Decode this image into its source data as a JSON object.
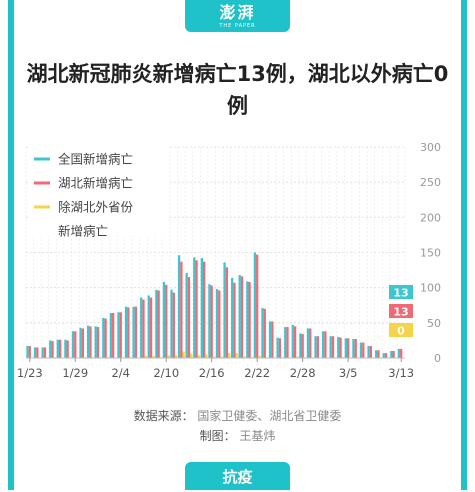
{
  "header": {
    "logo_text": "澎湃",
    "logo_sub": "THE PAPER"
  },
  "title": "湖北新冠肺炎新增病亡13例，湖北以外病亡0例",
  "source": {
    "data_label": "数据来源：",
    "data_value": "国家卫健委、湖北省卫健委",
    "chart_label": "制图：",
    "chart_value": "王基炜"
  },
  "footer": {
    "tab_label": "抗疫"
  },
  "colors": {
    "accent": "#1fc2c9",
    "national": "#3ec6d0",
    "hubei": "#f06a74",
    "outside": "#f5d44a"
  },
  "chart_data": {
    "type": "bar",
    "series": [
      {
        "name": "全国新增病亡",
        "values": [
          17,
          15,
          15,
          25,
          26,
          26,
          38,
          43,
          46,
          45,
          57,
          64,
          65,
          73,
          73,
          86,
          89,
          97,
          108,
          97,
          146,
          121,
          143,
          142,
          105,
          98,
          136,
          114,
          118,
          109,
          150,
          71,
          52,
          29,
          44,
          47,
          35,
          42,
          31,
          38,
          31,
          30,
          28,
          27,
          22,
          17,
          11,
          7,
          10,
          13
        ]
      },
      {
        "name": "湖北新增病亡",
        "values": [
          17,
          15,
          15,
          24,
          26,
          25,
          38,
          42,
          45,
          44,
          56,
          64,
          65,
          72,
          73,
          83,
          86,
          96,
          104,
          93,
          137,
          115,
          139,
          137,
          103,
          96,
          129,
          107,
          116,
          108,
          147,
          70,
          52,
          28,
          44,
          45,
          34,
          42,
          31,
          38,
          31,
          29,
          28,
          27,
          22,
          17,
          11,
          7,
          10,
          13
        ]
      },
      {
        "name": "除湖北外省份\n新增病亡",
        "values": [
          0,
          0,
          0,
          1,
          0,
          1,
          0,
          1,
          1,
          1,
          1,
          0,
          0,
          1,
          0,
          3,
          3,
          1,
          4,
          4,
          9,
          6,
          4,
          5,
          2,
          2,
          7,
          7,
          2,
          1,
          3,
          1,
          0,
          1,
          0,
          2,
          1,
          0,
          0,
          0,
          0,
          1,
          0,
          0,
          0,
          0,
          0,
          0,
          0,
          0
        ]
      }
    ],
    "legend": [
      "全国新增病亡",
      "湖北新增病亡",
      "除湖北外省份",
      "新增病亡"
    ],
    "x_tick_labels": [
      "1/23",
      "1/29",
      "2/4",
      "2/10",
      "2/16",
      "2/22",
      "2/28",
      "3/5",
      "3/13"
    ],
    "y_ticks": [
      "0",
      "50",
      "100",
      "150",
      "200",
      "250",
      "300"
    ],
    "ylim": [
      0,
      300
    ],
    "last_values": [
      "13",
      "13",
      "0"
    ],
    "grid": true,
    "legend_position": "top-left",
    "y_axis_position": "right"
  }
}
